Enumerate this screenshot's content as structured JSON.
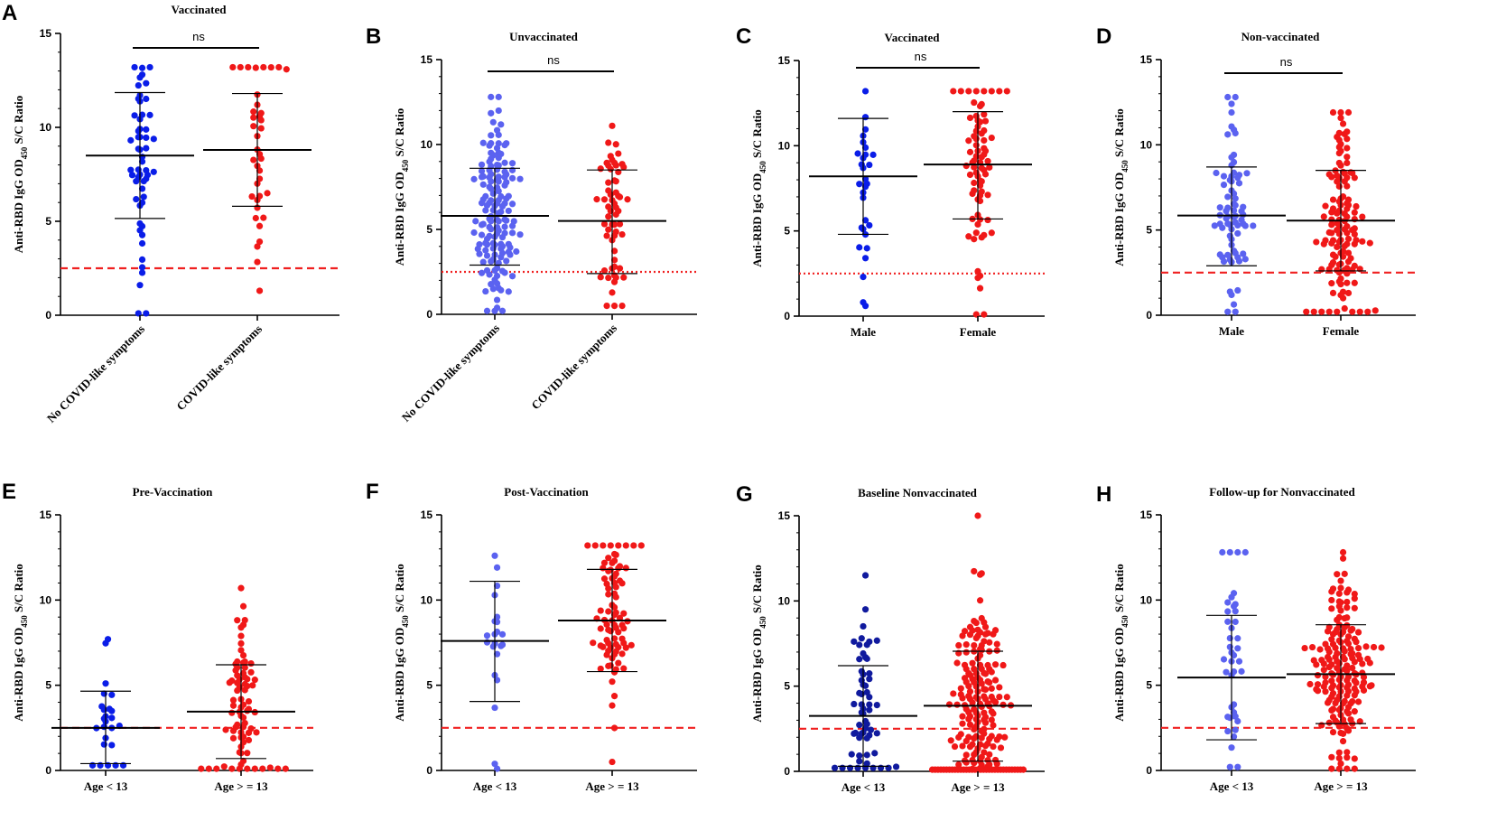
{
  "colors": {
    "blue": "#0a1de8",
    "blue_light": "#5b62f0",
    "blue_dark": "#101a9e",
    "red": "#f01818",
    "cutoff": "#f02020",
    "black": "#000000"
  },
  "chart_data": [
    {
      "panel": "A",
      "title": "Vaccinated",
      "type": "scatter",
      "ylabel": "Anti-RBD IgG OD450 S/C Ratio",
      "ylim": [
        0,
        15
      ],
      "yticks": [
        0,
        5,
        10,
        15
      ],
      "categories": [
        "No COVID-like symptoms",
        "COVID-like symptoms"
      ],
      "rotated_labels": true,
      "cutoff": 2.5,
      "cutoff_style": "dashed",
      "significance": "ns",
      "series": [
        {
          "name": "No COVID-like symptoms",
          "color": "blue",
          "n": 55,
          "mean": 8.5,
          "sd_low": 5.15,
          "sd_high": 11.85,
          "min": 0.1,
          "max": 13.2
        },
        {
          "name": "COVID-like symptoms",
          "color": "red",
          "n": 38,
          "mean": 8.8,
          "sd_low": 5.8,
          "sd_high": 11.8,
          "min": 1.3,
          "max": 13.2
        }
      ]
    },
    {
      "panel": "B",
      "title": "Unvaccinated",
      "type": "scatter",
      "ylabel": "Anti-RBD IgG OD450 S/C Ratio",
      "ylim": [
        0,
        15
      ],
      "yticks": [
        0,
        5,
        10,
        15
      ],
      "categories": [
        "No COVID-like symptoms",
        "COVID-like symptoms"
      ],
      "rotated_labels": true,
      "cutoff": 2.5,
      "cutoff_style": "dotted",
      "significance": "ns",
      "series": [
        {
          "name": "No COVID-like symptoms",
          "color": "blue_light",
          "n": 150,
          "mean": 5.8,
          "sd_low": 2.9,
          "sd_high": 8.6,
          "min": 0.2,
          "max": 12.8
        },
        {
          "name": "COVID-like symptoms",
          "color": "red",
          "n": 60,
          "mean": 5.5,
          "sd_low": 2.4,
          "sd_high": 8.5,
          "min": 0.5,
          "max": 11.1
        }
      ]
    },
    {
      "panel": "C",
      "title": "Vaccinated",
      "type": "scatter",
      "ylabel": "Anti-RBD IgG OD450 S/C Ratio",
      "ylim": [
        0,
        15
      ],
      "yticks": [
        0,
        5,
        10,
        15
      ],
      "categories": [
        "Male",
        "Female"
      ],
      "rotated_labels": false,
      "cutoff": 2.5,
      "cutoff_style": "dotted",
      "significance": "ns",
      "series": [
        {
          "name": "Male",
          "color": "blue",
          "n": 30,
          "mean": 8.2,
          "sd_low": 4.8,
          "sd_high": 11.6,
          "min": 0.6,
          "max": 13.2
        },
        {
          "name": "Female",
          "color": "red",
          "n": 75,
          "mean": 8.9,
          "sd_low": 5.7,
          "sd_high": 12.0,
          "min": 0.1,
          "max": 13.2
        }
      ]
    },
    {
      "panel": "D",
      "title": "Non-vaccinated",
      "type": "scatter",
      "ylabel": "Anti-RBD IgG OD450 S/C Ratio",
      "ylim": [
        0,
        15
      ],
      "yticks": [
        0,
        5,
        10,
        15
      ],
      "categories": [
        "Male",
        "Female"
      ],
      "rotated_labels": false,
      "cutoff": 2.5,
      "cutoff_style": "dashed",
      "significance": "ns",
      "series": [
        {
          "name": "Male",
          "color": "blue_light",
          "n": 75,
          "mean": 5.85,
          "sd_low": 2.9,
          "sd_high": 8.7,
          "min": 0.2,
          "max": 12.8
        },
        {
          "name": "Female",
          "color": "red",
          "n": 130,
          "mean": 5.55,
          "sd_low": 2.6,
          "sd_high": 8.5,
          "min": 0.2,
          "max": 11.9
        }
      ]
    },
    {
      "panel": "E",
      "title": "Pre-Vaccination",
      "type": "scatter",
      "ylabel": "Anti-RBD IgG OD450 S/C Ratio",
      "ylim": [
        0,
        15
      ],
      "yticks": [
        0,
        5,
        10,
        15
      ],
      "categories": [
        "Age < 13",
        "Age > = 13"
      ],
      "rotated_labels": false,
      "cutoff": 2.5,
      "cutoff_style": "dashed",
      "significance": "",
      "series": [
        {
          "name": "Age < 13",
          "color": "blue",
          "n": 25,
          "mean": 2.5,
          "sd_low": 0.4,
          "sd_high": 4.65,
          "min": 0.3,
          "max": 7.7
        },
        {
          "name": "Age > = 13",
          "color": "red",
          "n": 80,
          "mean": 3.45,
          "sd_low": 0.7,
          "sd_high": 6.2,
          "min": 0.1,
          "max": 10.7
        }
      ]
    },
    {
      "panel": "F",
      "title": "Post-Vaccination",
      "type": "scatter",
      "ylabel": "Anti-RBD IgG OD450 S/C Ratio",
      "ylim": [
        0,
        15
      ],
      "yticks": [
        0,
        5,
        10,
        15
      ],
      "categories": [
        "Age < 13",
        "Age > = 13"
      ],
      "rotated_labels": false,
      "cutoff": 2.5,
      "cutoff_style": "dashed",
      "significance": "",
      "series": [
        {
          "name": "Age < 13",
          "color": "blue_light",
          "n": 22,
          "mean": 7.6,
          "sd_low": 4.05,
          "sd_high": 11.1,
          "min": 0.1,
          "max": 12.6
        },
        {
          "name": "Age > = 13",
          "color": "red",
          "n": 85,
          "mean": 8.8,
          "sd_low": 5.8,
          "sd_high": 11.8,
          "min": 0.5,
          "max": 13.2
        }
      ]
    },
    {
      "panel": "G",
      "title": "Baseline Nonvaccinated",
      "type": "scatter",
      "ylabel": "Anti-RBD IgG OD450 S/C Ratio",
      "ylim": [
        0,
        15
      ],
      "yticks": [
        0,
        5,
        10,
        15
      ],
      "categories": [
        "Age < 13",
        "Age > = 13"
      ],
      "rotated_labels": false,
      "cutoff": 2.5,
      "cutoff_style": "dashed",
      "significance": "",
      "series": [
        {
          "name": "Age < 13",
          "color": "blue_dark",
          "n": 60,
          "mean": 3.25,
          "sd_low": 0.3,
          "sd_high": 6.2,
          "min": 0.2,
          "max": 11.5
        },
        {
          "name": "Age > = 13",
          "color": "red",
          "n": 200,
          "mean": 3.85,
          "sd_low": 0.6,
          "sd_high": 7.05,
          "min": 0.1,
          "max": 15.0
        }
      ]
    },
    {
      "panel": "H",
      "title": "Follow-up for Nonvaccinated",
      "type": "scatter",
      "ylabel": "Anti-RBD IgG OD450 S/C Ratio",
      "ylim": [
        0,
        15
      ],
      "yticks": [
        0,
        5,
        10,
        15
      ],
      "categories": [
        "Age < 13",
        "Age > = 13"
      ],
      "rotated_labels": false,
      "cutoff": 2.5,
      "cutoff_style": "dashed",
      "significance": "",
      "series": [
        {
          "name": "Age < 13",
          "color": "blue_light",
          "n": 40,
          "mean": 5.45,
          "sd_low": 1.8,
          "sd_high": 9.1,
          "min": 0.2,
          "max": 12.8
        },
        {
          "name": "Age > = 13",
          "color": "red",
          "n": 180,
          "mean": 5.65,
          "sd_low": 2.75,
          "sd_high": 8.55,
          "min": 0.1,
          "max": 12.8
        }
      ]
    }
  ]
}
